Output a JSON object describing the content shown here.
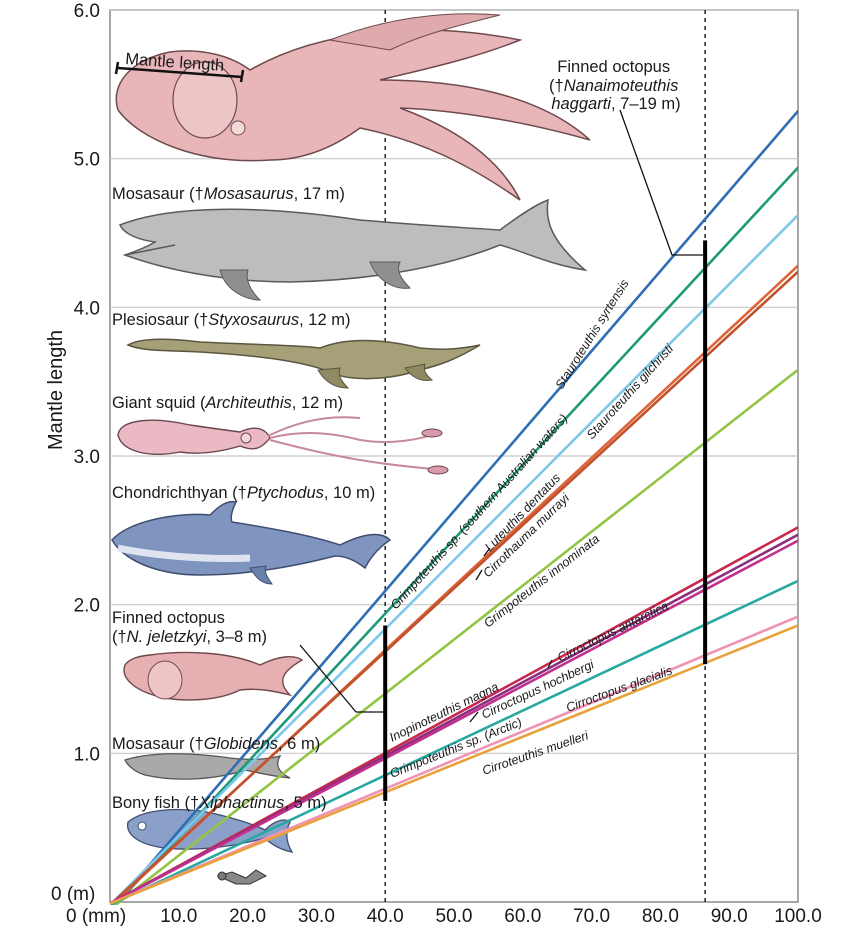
{
  "chart_data": {
    "type": "line",
    "ylabel": "Mantle length",
    "xlabel": "",
    "x_unit_label": "0 (mm)",
    "y_unit_label": "0 (m)",
    "xlim": [
      0,
      100
    ],
    "ylim": [
      0,
      6
    ],
    "x_ticks": [
      "10.0",
      "20.0",
      "30.0",
      "40.0",
      "50.0",
      "60.0",
      "70.0",
      "80.0",
      "90.0",
      "100.0"
    ],
    "y_ticks": [
      "1.0",
      "2.0",
      "3.0",
      "4.0",
      "5.0",
      "6.0"
    ],
    "grid": "horizontal",
    "reference_lines": [
      40,
      86.5
    ],
    "series": [
      {
        "name": "Stauroteuthis syrtensis",
        "color": "#2f6db5",
        "x": [
          0,
          100
        ],
        "y": [
          -0.06,
          5.32
        ]
      },
      {
        "name": "Grimpoteuthis sp. (southern Australian waters)",
        "color": "#1e9a78",
        "x": [
          0,
          100
        ],
        "y": [
          -0.06,
          4.94
        ]
      },
      {
        "name": "Luteuthis dentatus",
        "color": "#7cc8ea",
        "x": [
          0,
          100
        ],
        "y": [
          -0.02,
          4.62
        ]
      },
      {
        "name": "Stauroteuthis gilchristi",
        "color": "#de6437",
        "x": [
          0,
          100
        ],
        "y": [
          -0.03,
          4.28
        ]
      },
      {
        "name": "Cirrothauma murrayi",
        "color": "#c0522e",
        "x": [
          0,
          100
        ],
        "y": [
          -0.02,
          4.24
        ]
      },
      {
        "name": "Grimpoteuthis innominata",
        "color": "#93c443",
        "x": [
          0,
          100
        ],
        "y": [
          -0.05,
          3.58
        ]
      },
      {
        "name": "Inopinoteuthis magna",
        "color": "#c8284e",
        "x": [
          0,
          100
        ],
        "y": [
          -0.01,
          2.52
        ]
      },
      {
        "name": "Cirroctopus antarctica",
        "color": "#8a2f7f",
        "x": [
          0,
          100
        ],
        "y": [
          -0.01,
          2.47
        ]
      },
      {
        "name": "Cirroctopus hochbergi",
        "color": "#c2308e",
        "x": [
          0,
          100
        ],
        "y": [
          -0.01,
          2.43
        ]
      },
      {
        "name": "Grimpoteuthis sp. (Arctic)",
        "color": "#27a9a0",
        "x": [
          0,
          100
        ],
        "y": [
          -0.02,
          2.16
        ]
      },
      {
        "name": "Cirroctopus glacialis",
        "color": "#ef93b5",
        "x": [
          0,
          100
        ],
        "y": [
          -0.01,
          1.92
        ]
      },
      {
        "name": "Cirroteuthis muelleri",
        "color": "#e9a23b",
        "x": [
          0,
          100
        ],
        "y": [
          -0.01,
          1.86
        ]
      }
    ],
    "bars": [
      {
        "label": "Finned octopus (†N. jeletzkyi, 3–8 m)",
        "x": 40,
        "y_min": 0.68,
        "y_max": 1.86
      },
      {
        "label": "Finned octopus (†Nanaimoteuthis haggarti, 7–19 m)",
        "x": 86.5,
        "y_min": 1.6,
        "y_max": 4.45
      }
    ],
    "annotations": {
      "mantle": "Mantle length",
      "finned_big_1": "Finned octopus",
      "finned_big_2a": "(†",
      "finned_big_2b": "Nanaimoteuthis",
      "finned_big_3a": "haggarti",
      "finned_big_3b": ", 7–19 m)",
      "mosa_big_a": "Mosasaur (†",
      "mosa_big_b": "Mosasaurus",
      "mosa_big_c": ", 17 m)",
      "plesio_a": "Plesiosaur (†",
      "plesio_b": "Styxosaurus",
      "plesio_c": ", 12 m)",
      "squid_a": "Giant squid (",
      "squid_b": "Architeuthis",
      "squid_c": ", 12 m)",
      "chondr_a": "Chondrichthyan (†",
      "chondr_b": "Ptychodus",
      "chondr_c": ", 10 m)",
      "finned_small_1": "Finned octopus",
      "finned_small_2a": "(†",
      "finned_small_2b": "N. jeletzkyi",
      "finned_small_2c": ", 3–8 m)",
      "mosa_small_a": "Mosasaur (†",
      "mosa_small_b": "Globidens",
      "mosa_small_c": ", 6 m)",
      "fish_a": "Bony fish (†",
      "fish_b": "Xiphactinus",
      "fish_c": ", 5 m)"
    }
  }
}
